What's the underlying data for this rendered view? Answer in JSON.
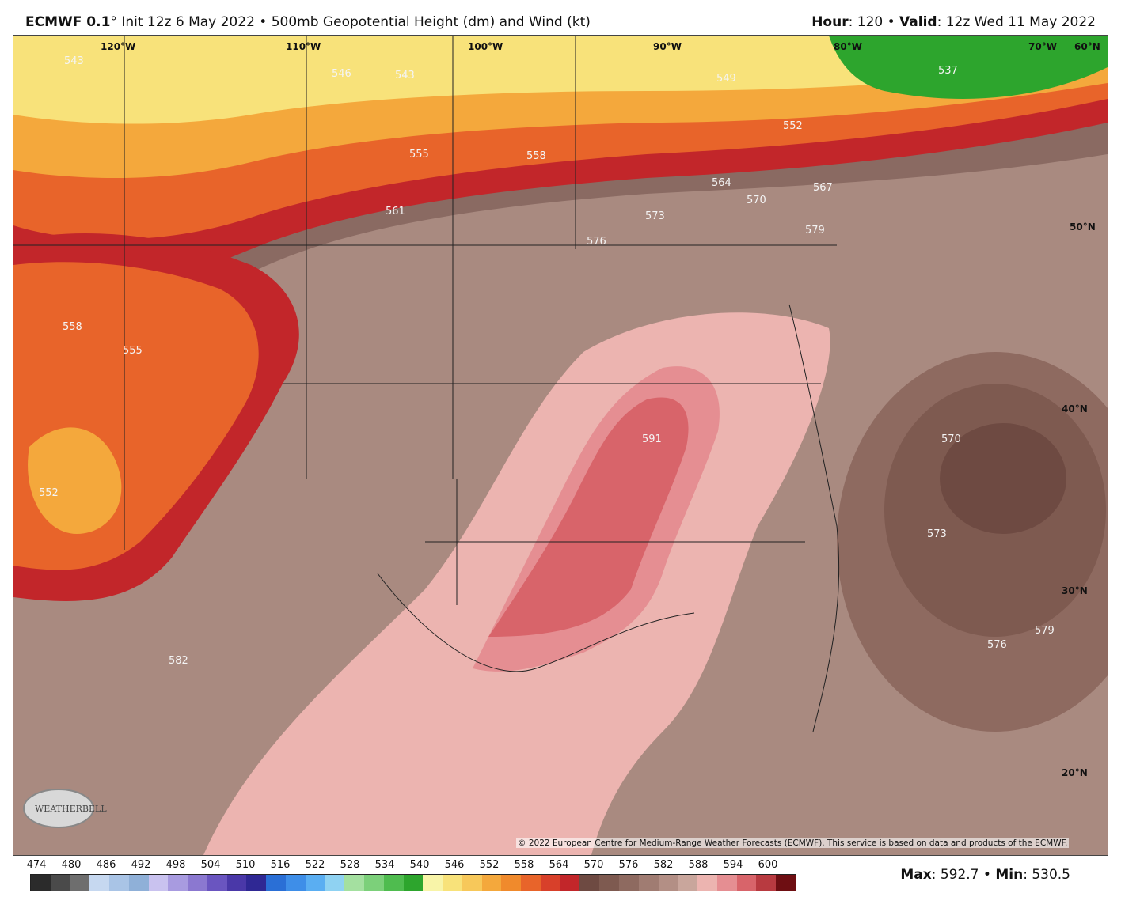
{
  "header": {
    "model": "ECMWF 0.1",
    "degree": "°",
    "init": "Init 12z 6 May 2022",
    "bullet": "•",
    "product": "500mb Geopotential Height (dm) and Wind (kt)",
    "hour_label": "Hour",
    "hour_value": "120",
    "valid_label": "Valid",
    "valid_value": "12z Wed 11 May 2022"
  },
  "map": {
    "longitude_labels": [
      "120°W",
      "110°W",
      "100°W",
      "90°W",
      "80°W",
      "70°W",
      "60°N"
    ],
    "latitude_labels": [
      "50°N",
      "40°N",
      "30°N",
      "20°N"
    ],
    "contour_labels": [
      "543",
      "546",
      "543",
      "549",
      "537",
      "552",
      "555",
      "558",
      "561",
      "564",
      "570",
      "567",
      "573",
      "576",
      "579",
      "558",
      "555",
      "552",
      "591",
      "570",
      "573",
      "576",
      "579",
      "582"
    ],
    "copyright": "© 2022 European Centre for Medium-Range Weather Forecasts (ECMWF). This service is based on data and products of the ECMWF.",
    "logo_text": "WEATHERBELL"
  },
  "legend": {
    "ticks": [
      "474",
      "480",
      "486",
      "492",
      "498",
      "504",
      "510",
      "516",
      "522",
      "528",
      "534",
      "540",
      "546",
      "552",
      "558",
      "564",
      "570",
      "576",
      "582",
      "588",
      "594",
      "600"
    ],
    "colors": [
      "#2b2b2b",
      "#4a4a4a",
      "#6e6e6e",
      "#c6d8f0",
      "#a9c4e6",
      "#8fb0d8",
      "#c9c2ef",
      "#a89be0",
      "#8b78d0",
      "#6a55c0",
      "#4a38a8",
      "#2f2894",
      "#2a6fd6",
      "#3e8ee8",
      "#5aaef2",
      "#8fd2f2",
      "#a4e0a0",
      "#7cd07a",
      "#4fbc4f",
      "#2da52d",
      "#f8f4a8",
      "#f8e27a",
      "#f7c85a",
      "#f4a83c",
      "#f08a2c",
      "#e8642a",
      "#d8402a",
      "#c2262a",
      "#6e4a42",
      "#7e5a50",
      "#8e6a60",
      "#a07c72",
      "#b38f85",
      "#c9a69c",
      "#ecb4b0",
      "#e58e92",
      "#d8646a",
      "#b83a40",
      "#6e0e12"
    ]
  },
  "stats": {
    "max_label": "Max",
    "max_value": "592.7",
    "min_label": "Min",
    "min_value": "530.5"
  }
}
